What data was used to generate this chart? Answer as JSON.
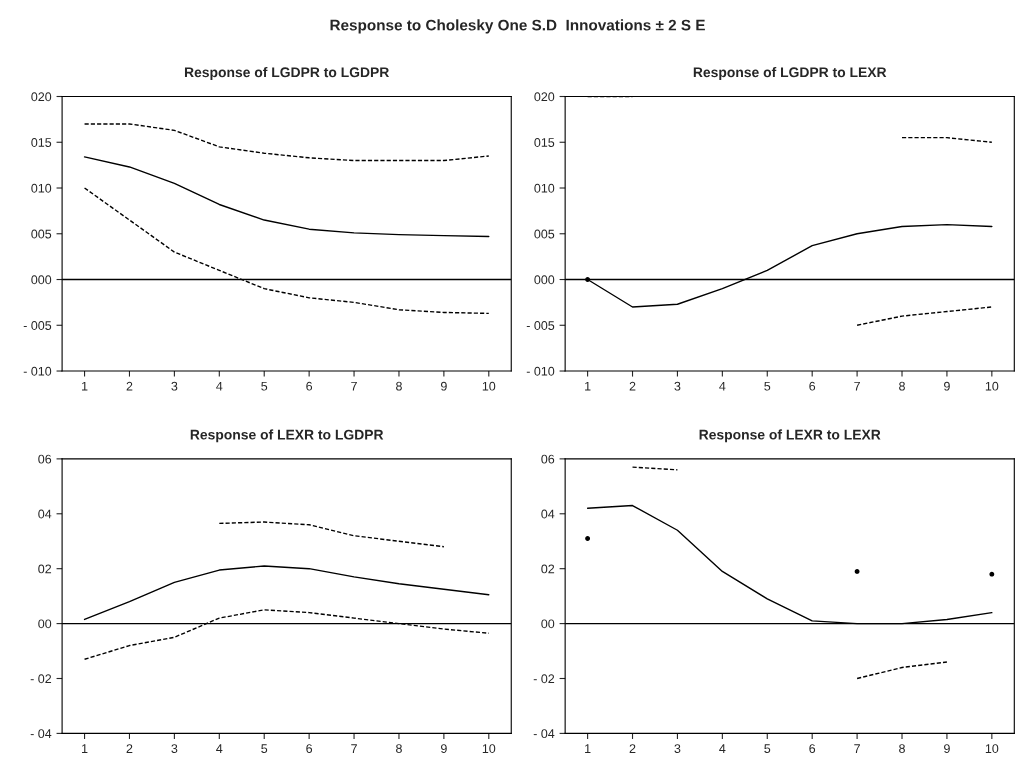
{
  "chart_data": [
    {
      "type": "line",
      "title": "Response of LGDPR to LGDPR",
      "annotations": [
        "Response to Cholesky One S.D  Innovations ± 2 S E"
      ],
      "categories": [
        "1",
        "2",
        "3",
        "4",
        "5",
        "6",
        "7",
        "8",
        "9",
        "10"
      ],
      "series": [
        {
          "color": "#000000",
          "line_style": "solid",
          "values": [
            13.4,
            12.3,
            10.5,
            8.2,
            6.5,
            5.5,
            5.1,
            4.9,
            4.8,
            4.7
          ]
        },
        {
          "color": "#000000",
          "line_style": "dashed",
          "values": [
            17,
            17,
            16.3,
            14.5,
            13.8,
            13.3,
            13,
            13,
            13,
            13.5
          ]
        },
        {
          "color": "#000000",
          "line_style": "dashed",
          "values": [
            10,
            6.5,
            3,
            1,
            -1,
            -2,
            -2.5,
            -3.3,
            -3.6,
            -3.7
          ]
        }
      ],
      "ylim": [
        -10,
        20
      ],
      "yticks": [
        {
          "value": -10,
          "label": "- 010"
        },
        {
          "value": -5,
          "label": "- 005"
        },
        {
          "value": 0,
          "label": "000"
        },
        {
          "value": 5,
          "label": "005"
        },
        {
          "value": 10,
          "label": "010"
        },
        {
          "value": 15,
          "label": "015"
        },
        {
          "value": 20,
          "label": "020"
        }
      ],
      "ref_lines": [
        {
          "axis": "y",
          "value": 0,
          "color": "#000000",
          "line_style": "solid"
        }
      ],
      "grid": false,
      "legend": false
    },
    {
      "type": "line",
      "title": "Response of LGDPR to LEXR",
      "categories": [
        "1",
        "2",
        "3",
        "4",
        "5",
        "6",
        "7",
        "8",
        "9",
        "10"
      ],
      "series": [
        {
          "color": "#000000",
          "line_style": "solid",
          "values": [
            0,
            -3,
            -2.7,
            -1,
            1,
            3.7,
            5,
            5.8,
            6,
            5.8
          ]
        },
        {
          "color": "#000000",
          "line_style": "dashed",
          "values": [
            20,
            20,
            null,
            null,
            null,
            null,
            null,
            15.5,
            15.5,
            15
          ]
        },
        {
          "color": "#000000",
          "line_style": "dashed",
          "values": [
            0,
            null,
            null,
            null,
            null,
            null,
            -5,
            -4,
            -3.5,
            -3
          ]
        }
      ],
      "ylim": [
        -10,
        20
      ],
      "yticks": [
        {
          "value": -10,
          "label": "- 010"
        },
        {
          "value": -5,
          "label": "- 005"
        },
        {
          "value": 0,
          "label": "000"
        },
        {
          "value": 5,
          "label": "005"
        },
        {
          "value": 10,
          "label": "010"
        },
        {
          "value": 15,
          "label": "015"
        },
        {
          "value": 20,
          "label": "020"
        }
      ],
      "ref_lines": [
        {
          "axis": "y",
          "value": 0,
          "color": "#000000",
          "line_style": "solid"
        }
      ],
      "grid": false,
      "legend": false
    },
    {
      "type": "line",
      "title": "Response of LEXR to LGDPR",
      "categories": [
        "1",
        "2",
        "3",
        "4",
        "5",
        "6",
        "7",
        "8",
        "9",
        "10"
      ],
      "series": [
        {
          "color": "#000000",
          "line_style": "solid",
          "values": [
            0.15,
            0.8,
            1.5,
            1.95,
            2.1,
            2,
            1.7,
            1.45,
            1.25,
            1.05
          ]
        },
        {
          "color": "#000000",
          "line_style": "dashed",
          "values": [
            null,
            null,
            null,
            3.65,
            3.7,
            3.6,
            3.2,
            3,
            2.8,
            null
          ]
        },
        {
          "color": "#000000",
          "line_style": "dashed",
          "values": [
            -1.3,
            -0.8,
            -0.5,
            0.2,
            0.5,
            0.4,
            0.2,
            0,
            -0.2,
            -0.35
          ]
        }
      ],
      "ylim": [
        -4,
        6
      ],
      "yticks": [
        {
          "value": -4,
          "label": "- 04"
        },
        {
          "value": -2,
          "label": "- 02"
        },
        {
          "value": 0,
          "label": "00"
        },
        {
          "value": 2,
          "label": "02"
        },
        {
          "value": 4,
          "label": "04"
        },
        {
          "value": 6,
          "label": "06"
        }
      ],
      "ref_lines": [
        {
          "axis": "y",
          "value": 0,
          "color": "#000000",
          "line_style": "solid"
        }
      ],
      "grid": false,
      "legend": false
    },
    {
      "type": "line",
      "title": "Response of LEXR to LEXR",
      "categories": [
        "1",
        "2",
        "3",
        "4",
        "5",
        "6",
        "7",
        "8",
        "9",
        "10"
      ],
      "series": [
        {
          "color": "#000000",
          "line_style": "solid",
          "values": [
            4.2,
            4.3,
            3.4,
            1.9,
            0.9,
            0.1,
            0,
            0,
            0.15,
            0.4
          ]
        },
        {
          "color": "#000000",
          "line_style": "dashed",
          "values": [
            null,
            5.7,
            5.6,
            null,
            null,
            null,
            1.9,
            null,
            null,
            1.8
          ]
        },
        {
          "color": "#000000",
          "line_style": "dashed",
          "values": [
            3.1,
            null,
            null,
            null,
            null,
            null,
            -2,
            -1.6,
            -1.4,
            null
          ]
        }
      ],
      "ylim": [
        -4,
        6
      ],
      "yticks": [
        {
          "value": -4,
          "label": "- 04"
        },
        {
          "value": -2,
          "label": "- 02"
        },
        {
          "value": 0,
          "label": "00"
        },
        {
          "value": 2,
          "label": "02"
        },
        {
          "value": 4,
          "label": "04"
        },
        {
          "value": 6,
          "label": "06"
        }
      ],
      "ref_lines": [
        {
          "axis": "y",
          "value": 0,
          "color": "#000000",
          "line_style": "solid"
        }
      ],
      "grid": false,
      "legend": false
    }
  ]
}
